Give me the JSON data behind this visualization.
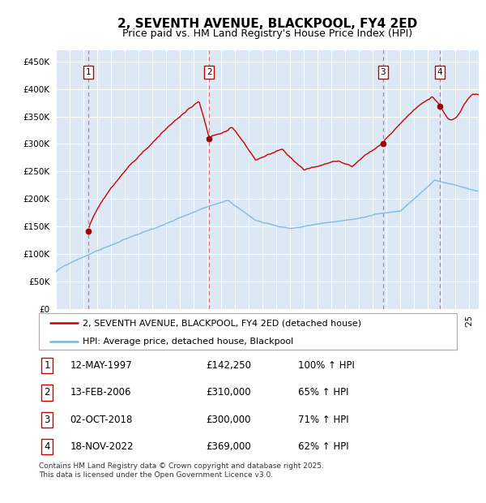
{
  "title": "2, SEVENTH AVENUE, BLACKPOOL, FY4 2ED",
  "subtitle": "Price paid vs. HM Land Registry's House Price Index (HPI)",
  "title_fontsize": 11,
  "subtitle_fontsize": 9,
  "bg_color": "#ffffff",
  "chart_bg_color": "#dce9f5",
  "red_line_color": "#cc0000",
  "blue_line_color": "#7ab4d8",
  "dashed_color": "#e06060",
  "sale_points": [
    {
      "num": 1,
      "year": 1997.36,
      "price": 142250
    },
    {
      "num": 2,
      "year": 2006.12,
      "price": 310000
    },
    {
      "num": 3,
      "year": 2018.75,
      "price": 300000
    },
    {
      "num": 4,
      "year": 2022.89,
      "price": 369000
    }
  ],
  "table_rows": [
    {
      "num": 1,
      "date": "12-MAY-1997",
      "price": "£142,250",
      "pct": "100% ↑ HPI"
    },
    {
      "num": 2,
      "date": "13-FEB-2006",
      "price": "£310,000",
      "pct": "65% ↑ HPI"
    },
    {
      "num": 3,
      "date": "02-OCT-2018",
      "price": "£300,000",
      "pct": "71% ↑ HPI"
    },
    {
      "num": 4,
      "date": "18-NOV-2022",
      "price": "£369,000",
      "pct": "62% ↑ HPI"
    }
  ],
  "legend_line1": "2, SEVENTH AVENUE, BLACKPOOL, FY4 2ED (detached house)",
  "legend_line2": "HPI: Average price, detached house, Blackpool",
  "footer": "Contains HM Land Registry data © Crown copyright and database right 2025.\nThis data is licensed under the Open Government Licence v3.0.",
  "ylim": [
    0,
    470000
  ],
  "xlim_start": 1995.3,
  "xlim_end": 2025.7,
  "yticks": [
    0,
    50000,
    100000,
    150000,
    200000,
    250000,
    300000,
    350000,
    400000,
    450000
  ],
  "ytick_labels": [
    "£0",
    "£50K",
    "£100K",
    "£150K",
    "£200K",
    "£250K",
    "£300K",
    "£350K",
    "£400K",
    "£450K"
  ]
}
